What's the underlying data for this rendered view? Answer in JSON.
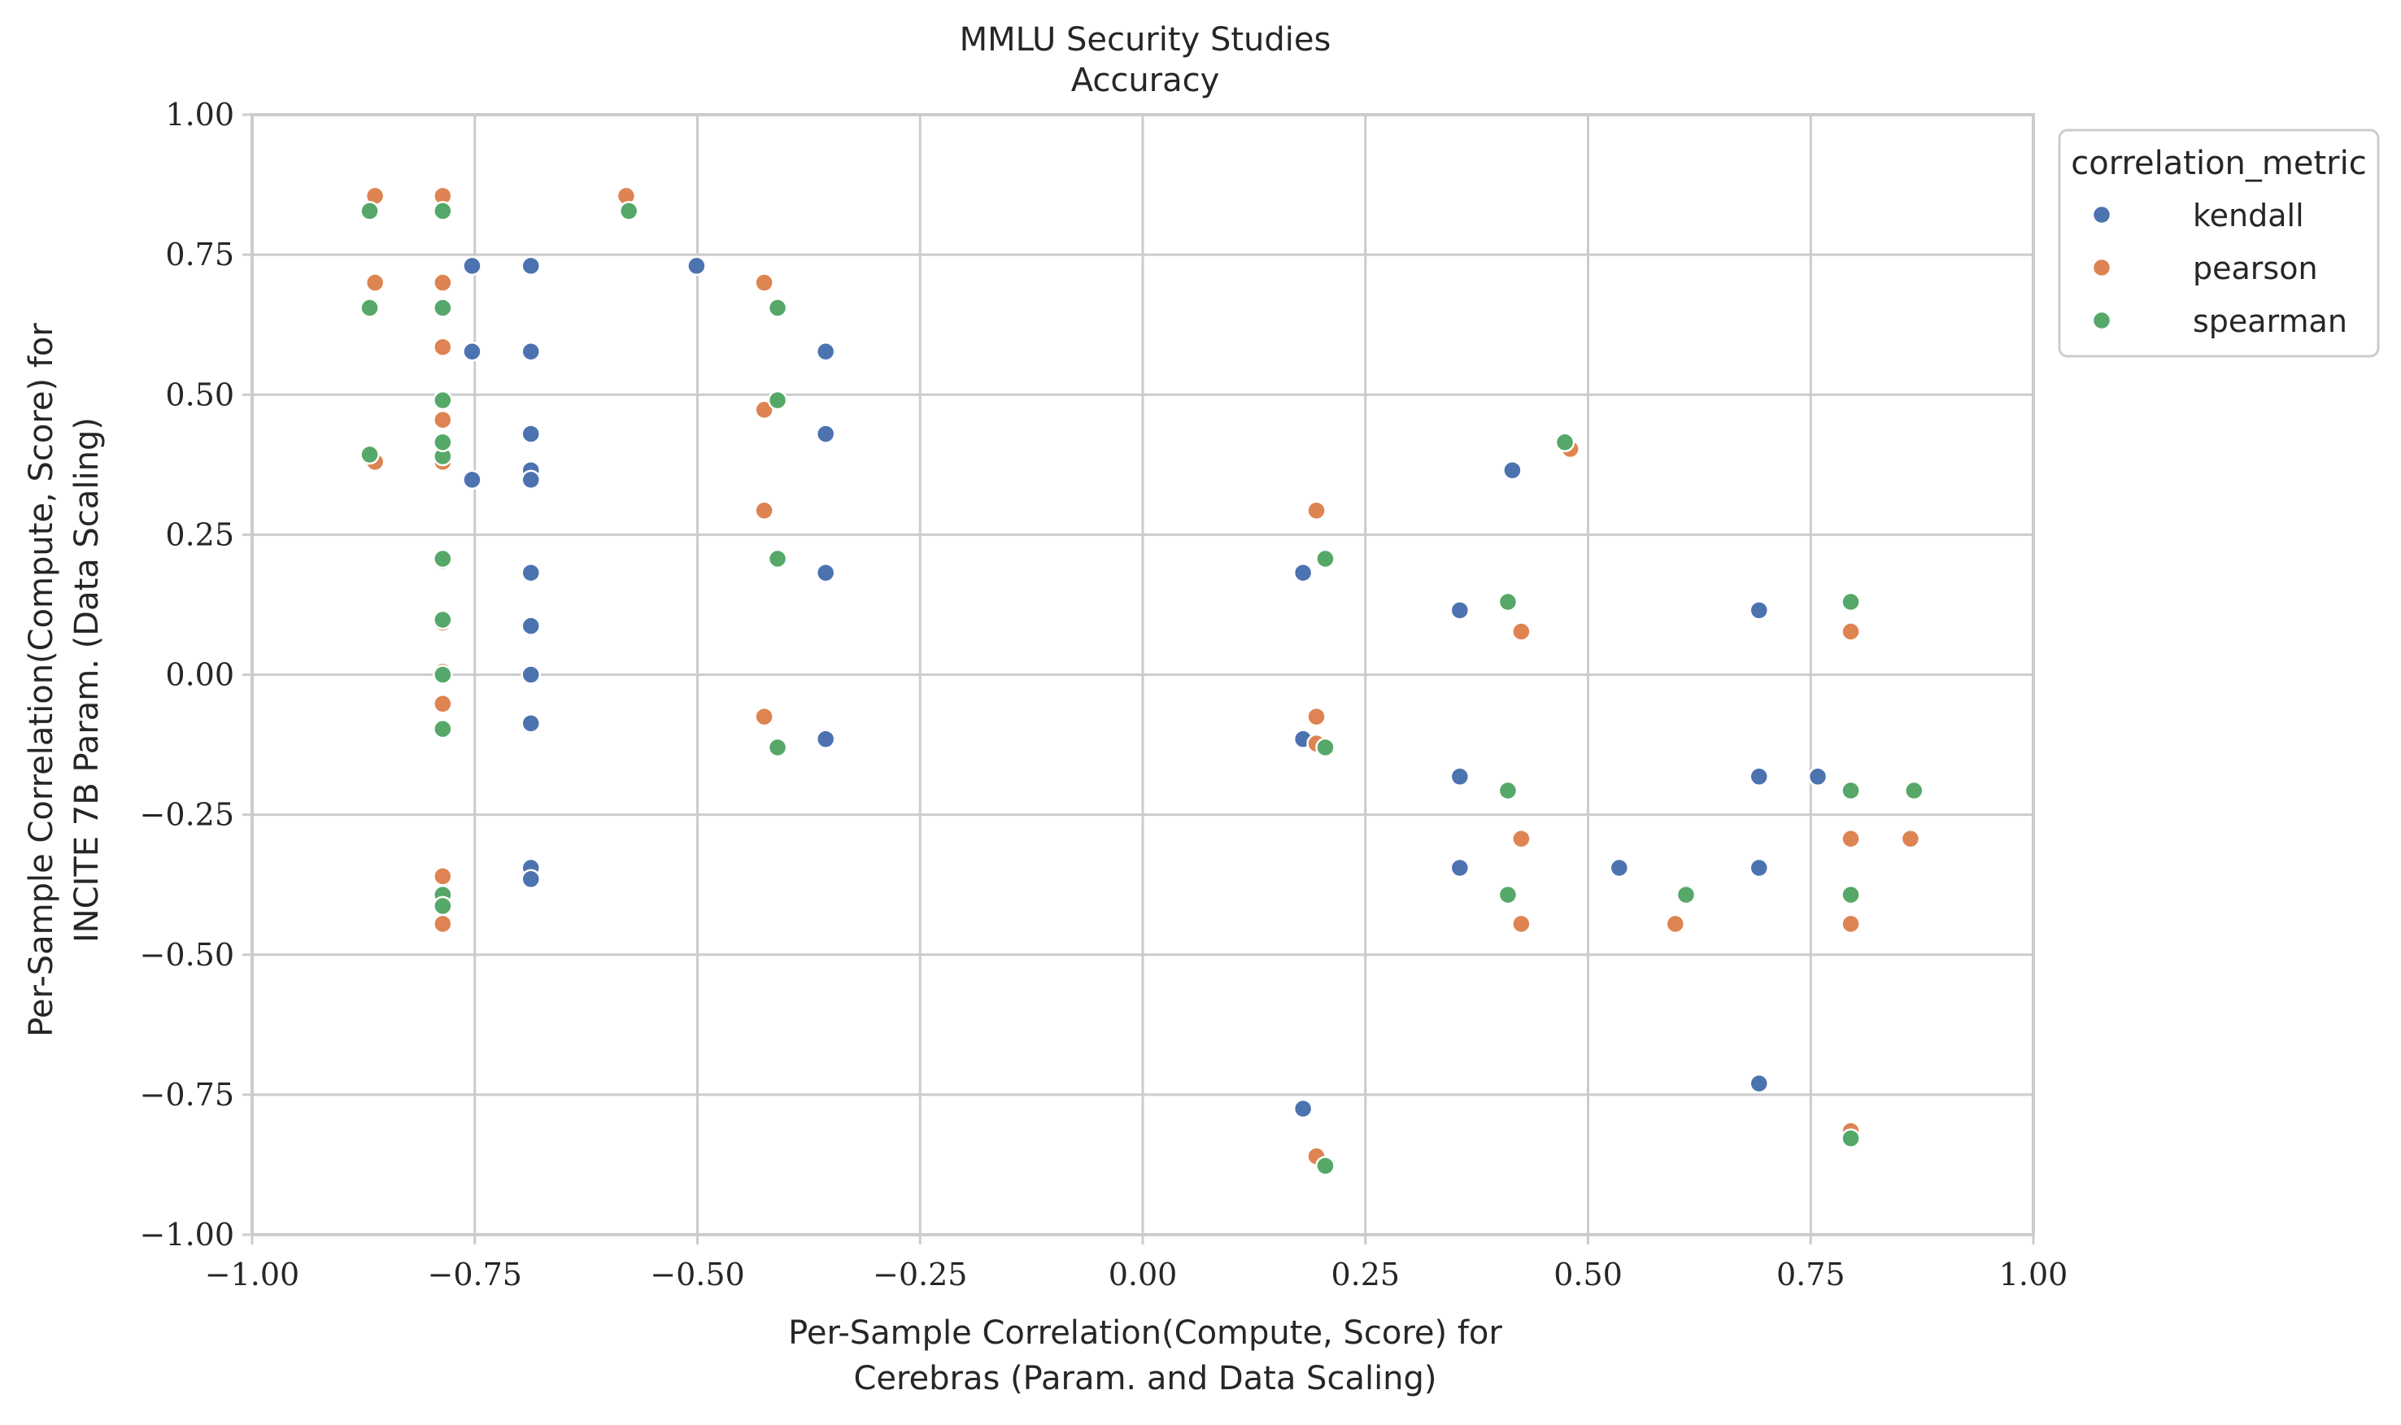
{
  "chart_data": {
    "type": "scatter",
    "title": "MMLU Security Studies",
    "subtitle": "Accuracy",
    "xlabel": [
      "Per-Sample Correlation(Compute, Score) for",
      "Cerebras (Param. and Data Scaling)"
    ],
    "ylabel": [
      "Per-Sample Correlation(Compute, Score) for",
      "INCITE 7B Param. (Data Scaling)"
    ],
    "xlim": [
      -1.0,
      1.0
    ],
    "ylim": [
      -1.0,
      1.0
    ],
    "xticks": [
      -1.0,
      -0.75,
      -0.5,
      -0.25,
      0.0,
      0.25,
      0.5,
      0.75,
      1.0
    ],
    "yticks": [
      -1.0,
      -0.75,
      -0.5,
      -0.25,
      0.0,
      0.25,
      0.5,
      0.75,
      1.0
    ],
    "xtick_labels": [
      "−1.00",
      "−0.75",
      "−0.50",
      "−0.25",
      "0.00",
      "0.25",
      "0.50",
      "0.75",
      "1.00"
    ],
    "ytick_labels": [
      "−1.00",
      "−0.75",
      "−0.50",
      "−0.25",
      "0.00",
      "0.25",
      "0.50",
      "0.75",
      "1.00"
    ],
    "grid": true,
    "legend": {
      "title": "correlation_metric",
      "placement": "outside-right-top"
    },
    "series": [
      {
        "name": "kendall",
        "color": "#4c72b0",
        "points": [
          [
            -0.753,
            0.73
          ],
          [
            -0.687,
            0.73
          ],
          [
            -0.501,
            0.73
          ],
          [
            -0.753,
            0.577
          ],
          [
            -0.687,
            0.577
          ],
          [
            -0.356,
            0.577
          ],
          [
            -0.687,
            0.43
          ],
          [
            -0.356,
            0.43
          ],
          [
            -0.687,
            0.365
          ],
          [
            -0.687,
            0.348
          ],
          [
            -0.753,
            0.348
          ],
          [
            -0.687,
            0.182
          ],
          [
            -0.356,
            0.182
          ],
          [
            -0.687,
            0.087
          ],
          [
            -0.687,
            0.0
          ],
          [
            -0.687,
            -0.087
          ],
          [
            -0.356,
            -0.115
          ],
          [
            -0.687,
            -0.345
          ],
          [
            -0.687,
            -0.365
          ],
          [
            0.18,
            0.182
          ],
          [
            0.18,
            -0.115
          ],
          [
            0.18,
            -0.775
          ],
          [
            0.356,
            0.115
          ],
          [
            0.356,
            -0.182
          ],
          [
            0.356,
            -0.345
          ],
          [
            0.415,
            0.365
          ],
          [
            0.535,
            -0.345
          ],
          [
            0.692,
            0.115
          ],
          [
            0.692,
            -0.182
          ],
          [
            0.692,
            -0.345
          ],
          [
            0.692,
            -0.73
          ],
          [
            0.758,
            -0.182
          ]
        ]
      },
      {
        "name": "pearson",
        "color": "#dd8452",
        "points": [
          [
            -0.862,
            0.855
          ],
          [
            -0.786,
            0.855
          ],
          [
            -0.58,
            0.855
          ],
          [
            -0.862,
            0.7
          ],
          [
            -0.786,
            0.7
          ],
          [
            -0.425,
            0.7
          ],
          [
            -0.786,
            0.585
          ],
          [
            -0.425,
            0.473
          ],
          [
            -0.786,
            0.455
          ],
          [
            -0.862,
            0.38
          ],
          [
            -0.786,
            0.38
          ],
          [
            -0.425,
            0.293
          ],
          [
            -0.786,
            0.203
          ],
          [
            -0.786,
            0.093
          ],
          [
            -0.786,
            0.005
          ],
          [
            -0.786,
            -0.052
          ],
          [
            -0.425,
            -0.075
          ],
          [
            -0.786,
            -0.36
          ],
          [
            -0.786,
            -0.445
          ],
          [
            0.195,
            0.293
          ],
          [
            0.195,
            -0.075
          ],
          [
            0.195,
            -0.123
          ],
          [
            0.195,
            -0.86
          ],
          [
            0.425,
            0.077
          ],
          [
            0.425,
            -0.293
          ],
          [
            0.425,
            -0.445
          ],
          [
            0.48,
            0.403
          ],
          [
            0.598,
            -0.445
          ],
          [
            0.795,
            0.077
          ],
          [
            0.795,
            -0.293
          ],
          [
            0.795,
            -0.445
          ],
          [
            0.795,
            -0.815
          ],
          [
            0.862,
            -0.293
          ]
        ]
      },
      {
        "name": "spearman",
        "color": "#55a868",
        "points": [
          [
            -0.868,
            0.828
          ],
          [
            -0.786,
            0.828
          ],
          [
            -0.577,
            0.828
          ],
          [
            -0.868,
            0.655
          ],
          [
            -0.786,
            0.655
          ],
          [
            -0.41,
            0.655
          ],
          [
            -0.786,
            0.49
          ],
          [
            -0.41,
            0.49
          ],
          [
            -0.868,
            0.393
          ],
          [
            -0.786,
            0.39
          ],
          [
            -0.786,
            0.415
          ],
          [
            -0.786,
            0.207
          ],
          [
            -0.41,
            0.207
          ],
          [
            -0.786,
            0.098
          ],
          [
            -0.786,
            0.0
          ],
          [
            -0.786,
            -0.097
          ],
          [
            -0.41,
            -0.13
          ],
          [
            -0.786,
            -0.393
          ],
          [
            -0.786,
            -0.413
          ],
          [
            0.205,
            0.207
          ],
          [
            0.205,
            -0.13
          ],
          [
            0.205,
            -0.877
          ],
          [
            0.41,
            0.13
          ],
          [
            0.41,
            -0.207
          ],
          [
            0.41,
            -0.393
          ],
          [
            0.474,
            0.415
          ],
          [
            0.61,
            -0.393
          ],
          [
            0.795,
            0.13
          ],
          [
            0.795,
            -0.207
          ],
          [
            0.795,
            -0.393
          ],
          [
            0.795,
            -0.828
          ],
          [
            0.866,
            -0.207
          ]
        ]
      }
    ]
  }
}
